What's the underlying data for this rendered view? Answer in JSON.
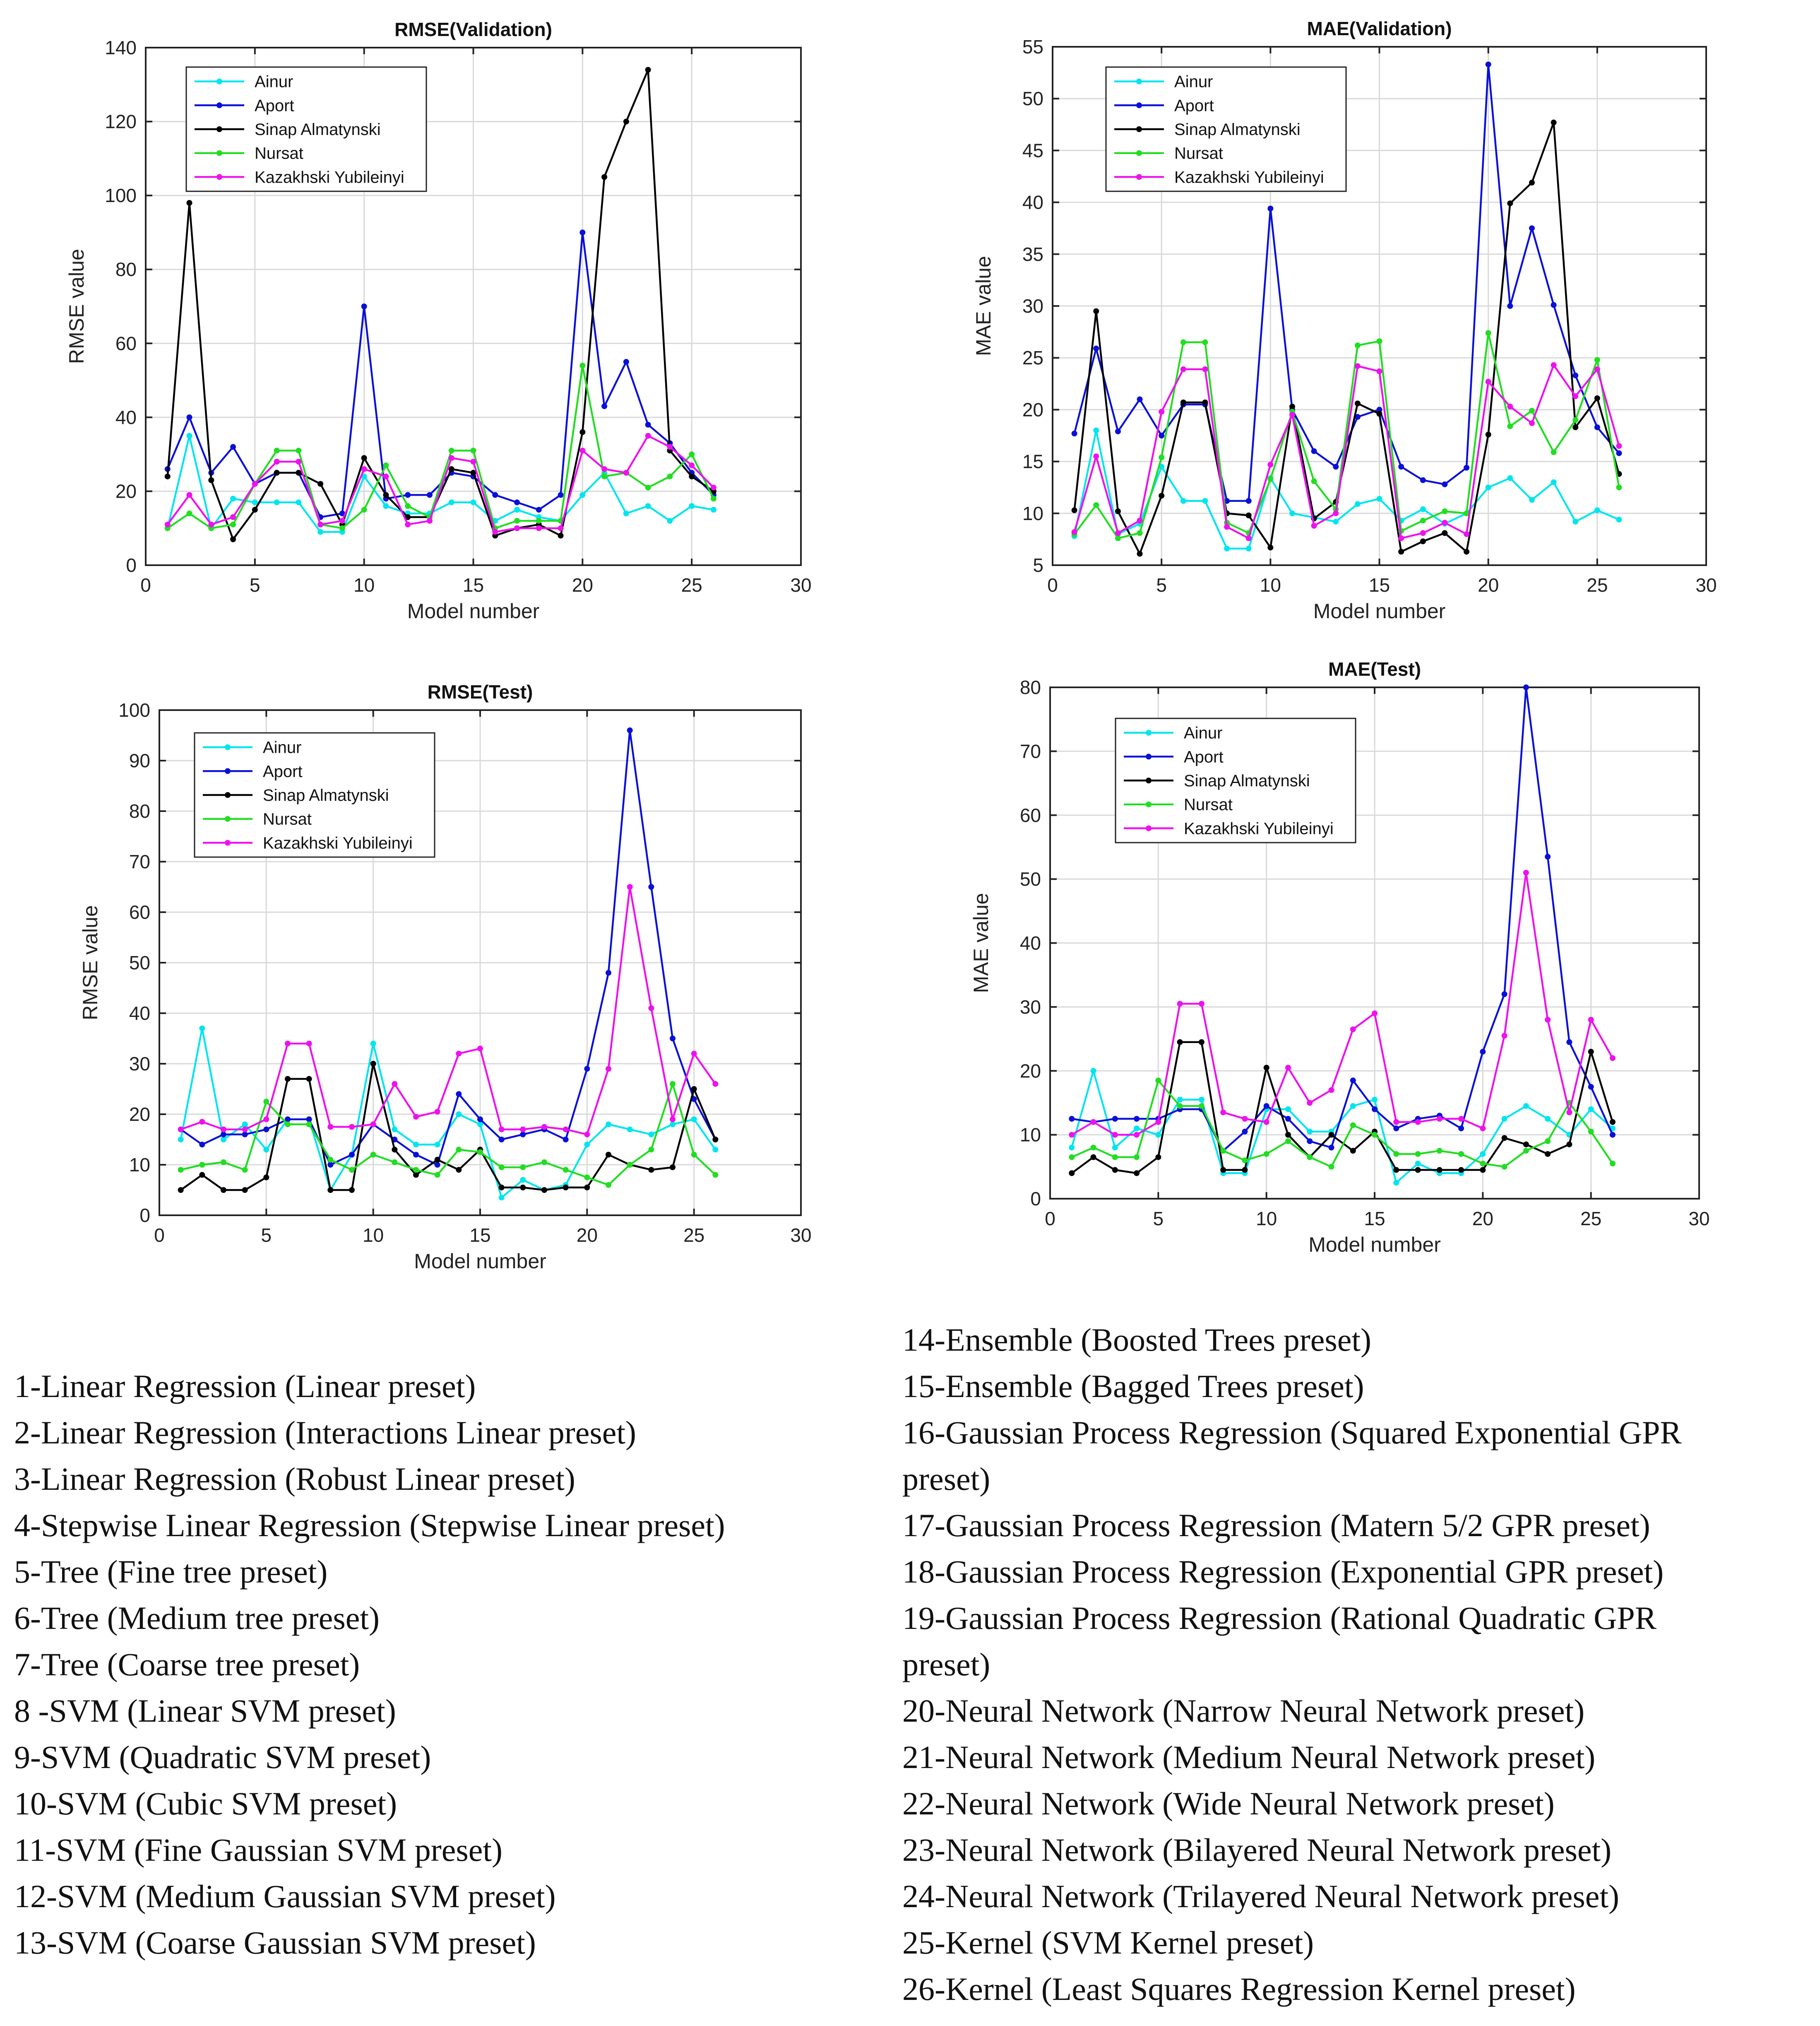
{
  "series_names": [
    "Ainur",
    "Aport",
    "Sinap Almatynski",
    "Nursat",
    "Kazakhski Yubileinyi"
  ],
  "series_colors": [
    "#00e5ee",
    "#0a10d8",
    "#000000",
    "#22dd22",
    "#ee11ee"
  ],
  "chart_data": [
    {
      "type": "line",
      "title": "RMSE(Validation)",
      "xlabel": "Model number",
      "ylabel": "RMSE value",
      "xlim": [
        0,
        30
      ],
      "ylim": [
        0,
        140
      ],
      "xticks": [
        0,
        5,
        10,
        15,
        20,
        25,
        30
      ],
      "yticks": [
        0,
        20,
        40,
        60,
        80,
        100,
        120,
        140
      ],
      "grid": true,
      "legend_position": "top-left",
      "x": [
        1,
        2,
        3,
        4,
        5,
        6,
        7,
        8,
        9,
        10,
        11,
        12,
        13,
        14,
        15,
        16,
        17,
        18,
        19,
        20,
        21,
        22,
        23,
        24,
        25,
        26
      ],
      "series": [
        {
          "name": "Ainur",
          "values": [
            10,
            35,
            10,
            18,
            17,
            17,
            17,
            9,
            9,
            24,
            16,
            14,
            14,
            17,
            17,
            12,
            15,
            13,
            12,
            19,
            25,
            14,
            16,
            12,
            16,
            15
          ]
        },
        {
          "name": "Aport",
          "values": [
            26,
            40,
            25,
            32,
            22,
            25,
            25,
            13,
            14,
            70,
            18,
            19,
            19,
            25,
            24,
            19,
            17,
            15,
            19,
            90,
            43,
            55,
            38,
            33,
            25,
            19
          ]
        },
        {
          "name": "Sinap Almatynski",
          "values": [
            24,
            98,
            23,
            7,
            15,
            25,
            25,
            22,
            11,
            29,
            19,
            13,
            13,
            26,
            25,
            8,
            10,
            11,
            8,
            36,
            105,
            120,
            134,
            31,
            24,
            20
          ]
        },
        {
          "name": "Nursat",
          "values": [
            10,
            14,
            10,
            11,
            22,
            31,
            31,
            11,
            10,
            15,
            27,
            16,
            13,
            31,
            31,
            10,
            12,
            12,
            12,
            54,
            24,
            25,
            21,
            24,
            30,
            18
          ]
        },
        {
          "name": "Kazakhski Yubileinyi",
          "values": [
            11,
            19,
            11,
            13,
            22,
            28,
            28,
            11,
            12,
            26,
            24,
            11,
            12,
            29,
            28,
            9,
            10,
            10,
            10,
            31,
            26,
            25,
            35,
            32,
            27,
            21
          ]
        }
      ]
    },
    {
      "type": "line",
      "title": "MAE(Validation)",
      "xlabel": "Model number",
      "ylabel": "MAE value",
      "xlim": [
        0,
        30
      ],
      "ylim": [
        5,
        55
      ],
      "xticks": [
        0,
        5,
        10,
        15,
        20,
        25,
        30
      ],
      "yticks": [
        5,
        10,
        15,
        20,
        25,
        30,
        35,
        40,
        45,
        50,
        55
      ],
      "grid": true,
      "legend_position": "top-left",
      "x": [
        1,
        2,
        3,
        4,
        5,
        6,
        7,
        8,
        9,
        10,
        11,
        12,
        13,
        14,
        15,
        16,
        17,
        18,
        19,
        20,
        21,
        22,
        23,
        24,
        25,
        26
      ],
      "series": [
        {
          "name": "Ainur",
          "values": [
            7.8,
            18,
            8,
            9,
            14.5,
            11.2,
            11.2,
            6.6,
            6.6,
            13.4,
            10,
            9.6,
            9.2,
            10.9,
            11.4,
            9.3,
            10.4,
            9,
            10,
            12.5,
            13.4,
            11.3,
            13,
            9.2,
            10.3,
            9.4
          ]
        },
        {
          "name": "Aport",
          "values": [
            17.7,
            25.9,
            17.9,
            21,
            17.5,
            20.5,
            20.5,
            11.2,
            11.2,
            39.4,
            20,
            16,
            14.5,
            19.3,
            20,
            14.5,
            13.2,
            12.8,
            14.4,
            53.3,
            30,
            37.5,
            30.1,
            23.3,
            18.3,
            15.8
          ]
        },
        {
          "name": "Sinap Almatynski",
          "values": [
            10.3,
            29.5,
            10.2,
            6.1,
            11.7,
            20.7,
            20.7,
            10,
            9.8,
            6.7,
            20.3,
            9.5,
            11.1,
            20.6,
            19.6,
            6.3,
            7.3,
            8.1,
            6.3,
            17.6,
            39.9,
            41.9,
            47.7,
            18.3,
            21.1,
            13.8
          ]
        },
        {
          "name": "Nursat",
          "values": [
            8,
            10.8,
            7.6,
            8.1,
            15.4,
            26.5,
            26.5,
            9.1,
            8.1,
            13.3,
            19.8,
            13.1,
            10.4,
            26.2,
            26.6,
            8.3,
            9.3,
            10.2,
            10,
            27.4,
            18.4,
            19.9,
            15.9,
            19,
            24.8,
            12.5
          ]
        },
        {
          "name": "Kazakhski Yubileinyi",
          "values": [
            8.2,
            15.5,
            8.1,
            9.3,
            19.8,
            23.9,
            23.9,
            8.7,
            7.6,
            14.7,
            19.5,
            8.8,
            10,
            24.2,
            23.7,
            7.6,
            8.1,
            9.1,
            8,
            22.7,
            20.3,
            18.7,
            24.3,
            21.3,
            23.9,
            16.5
          ]
        }
      ]
    },
    {
      "type": "line",
      "title": "RMSE(Test)",
      "xlabel": "Model number",
      "ylabel": "RMSE value",
      "xlim": [
        0,
        30
      ],
      "ylim": [
        0,
        100
      ],
      "xticks": [
        0,
        5,
        10,
        15,
        20,
        25,
        30
      ],
      "yticks": [
        0,
        10,
        20,
        30,
        40,
        50,
        60,
        70,
        80,
        90,
        100
      ],
      "grid": true,
      "legend_position": "top-left",
      "x": [
        1,
        2,
        3,
        4,
        5,
        6,
        7,
        8,
        9,
        10,
        11,
        12,
        13,
        14,
        15,
        16,
        17,
        18,
        19,
        20,
        21,
        22,
        23,
        24,
        25,
        26
      ],
      "series": [
        {
          "name": "Ainur",
          "values": [
            15,
            37,
            15,
            18,
            13,
            19,
            19,
            5,
            12,
            34,
            17,
            14,
            14,
            20,
            18,
            3.5,
            7,
            5,
            6,
            14,
            18,
            17,
            16,
            18,
            19,
            13
          ]
        },
        {
          "name": "Aport",
          "values": [
            17,
            14,
            16,
            16,
            17,
            19,
            19,
            10,
            12,
            18,
            15,
            12,
            10,
            24,
            19,
            15,
            16,
            17,
            15,
            29,
            48,
            96,
            65,
            35,
            23,
            15
          ]
        },
        {
          "name": "Sinap Almatynski",
          "values": [
            5,
            8,
            5,
            5,
            7.5,
            27,
            27,
            5,
            5,
            30,
            13,
            8,
            11,
            9,
            13,
            5.5,
            5.5,
            5,
            5.5,
            5.5,
            12,
            10,
            9,
            9.5,
            25,
            15
          ]
        },
        {
          "name": "Nursat",
          "values": [
            9,
            10,
            10.5,
            9,
            22.5,
            18,
            18,
            11,
            9,
            12,
            10.5,
            9,
            8,
            13,
            12.5,
            9.5,
            9.5,
            10.5,
            9,
            7.5,
            6,
            10,
            13,
            26,
            12,
            8
          ]
        },
        {
          "name": "Kazakhski Yubileinyi",
          "values": [
            17,
            18.5,
            17,
            17,
            19,
            34,
            34,
            17.5,
            17.5,
            18,
            26,
            19.5,
            20.5,
            32,
            33,
            17,
            17,
            17.5,
            17,
            16,
            29,
            65,
            41,
            19,
            32,
            26
          ]
        }
      ]
    },
    {
      "type": "line",
      "title": "MAE(Test)",
      "xlabel": "Model number",
      "ylabel": "MAE value",
      "xlim": [
        0,
        30
      ],
      "ylim": [
        0,
        80
      ],
      "xticks": [
        0,
        5,
        10,
        15,
        20,
        25,
        30
      ],
      "yticks": [
        0,
        10,
        20,
        30,
        40,
        50,
        60,
        70,
        80
      ],
      "grid": true,
      "legend_position": "top-left",
      "x": [
        1,
        2,
        3,
        4,
        5,
        6,
        7,
        8,
        9,
        10,
        11,
        12,
        13,
        14,
        15,
        16,
        17,
        18,
        19,
        20,
        21,
        22,
        23,
        24,
        25,
        26
      ],
      "series": [
        {
          "name": "Ainur",
          "values": [
            8,
            20,
            8,
            11,
            10,
            15.5,
            15.5,
            4,
            4,
            14,
            14,
            10.5,
            10.5,
            14.5,
            15.5,
            2.5,
            5.5,
            4,
            4,
            7,
            12.5,
            14.5,
            12.5,
            10,
            14,
            11
          ]
        },
        {
          "name": "Aport",
          "values": [
            12.5,
            12,
            12.5,
            12.5,
            12.5,
            14,
            14,
            7.5,
            10.5,
            14.5,
            12.5,
            9,
            8,
            18.5,
            14,
            11,
            12.5,
            13,
            11,
            23,
            32,
            80,
            53.5,
            24.5,
            17.5,
            10
          ]
        },
        {
          "name": "Sinap Almatynski",
          "values": [
            4,
            6.5,
            4.5,
            4,
            6.5,
            24.5,
            24.5,
            4.5,
            4.5,
            20.5,
            10,
            6.5,
            10,
            7.5,
            10.5,
            4.5,
            4.5,
            4.5,
            4.5,
            4.5,
            9.5,
            8.5,
            7,
            8.5,
            23,
            12
          ]
        },
        {
          "name": "Nursat",
          "values": [
            6.5,
            8,
            6.5,
            6.5,
            18.5,
            14.5,
            14.5,
            7.5,
            6,
            7,
            9,
            6.5,
            5,
            11.5,
            10,
            7,
            7,
            7.5,
            7,
            5.5,
            5,
            7.5,
            9,
            15,
            10.5,
            5.5
          ]
        },
        {
          "name": "Kazakhski Yubileinyi",
          "values": [
            10,
            12,
            10,
            10,
            12,
            30.5,
            30.5,
            13.5,
            12.5,
            12,
            20.5,
            15,
            17,
            26.5,
            29,
            12,
            12,
            12.5,
            12.5,
            11,
            25.5,
            51,
            28,
            13.5,
            28,
            22
          ]
        }
      ]
    }
  ],
  "model_list_left": [
    "1-Linear Regression (Linear preset)",
    "2-Linear Regression (Interactions Linear preset)",
    "3-Linear Regression (Robust Linear preset)",
    "4-Stepwise Linear Regression (Stepwise Linear preset)",
    "5-Tree (Fine tree preset)",
    "6-Tree (Medium tree preset)",
    "7-Tree (Coarse tree preset)",
    "8 -SVM (Linear SVM preset)",
    "9-SVM (Quadratic SVM preset)",
    "10-SVM (Cubic SVM preset)",
    "11-SVM (Fine Gaussian SVM preset)",
    "12-SVM (Medium Gaussian SVM preset)",
    "13-SVM (Coarse Gaussian SVM preset)"
  ],
  "model_list_right": [
    "14-Ensemble (Boosted Trees preset)",
    "15-Ensemble (Bagged Trees preset)",
    "16-Gaussian Process Regression (Squared Exponential GPR",
    "preset)",
    "17-Gaussian Process Regression (Matern 5/2 GPR preset)",
    "18-Gaussian Process Regression (Exponential GPR preset)",
    "19-Gaussian Process Regression (Rational Quadratic GPR",
    "preset)",
    "20-Neural Network (Narrow Neural Network preset)",
    "21-Neural Network (Medium Neural Network preset)",
    "22-Neural Network (Wide Neural Network preset)",
    "23-Neural Network (Bilayered Neural Network preset)",
    "24-Neural Network (Trilayered Neural Network preset)",
    "25-Kernel (SVM Kernel preset)",
    "26-Kernel (Least Squares Regression Kernel preset)"
  ]
}
